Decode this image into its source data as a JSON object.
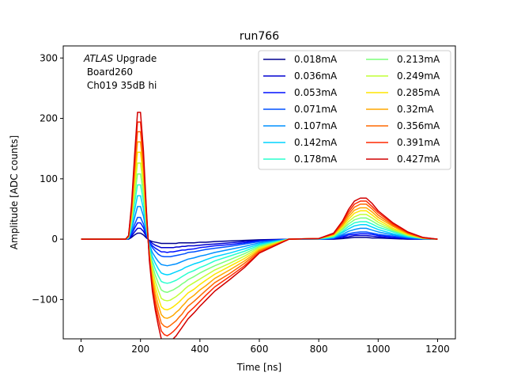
{
  "chart_data": {
    "type": "line",
    "title": "run766",
    "xlabel": "Time [ns]",
    "ylabel": "Amplitude [ADC counts]",
    "xlim": [
      -60,
      1260
    ],
    "ylim": [
      -165,
      320
    ],
    "xticks": [
      0,
      200,
      400,
      600,
      800,
      1000,
      1200
    ],
    "yticks": [
      -100,
      0,
      100,
      200,
      300
    ],
    "ytick_labels": [
      "−100",
      "0",
      "100",
      "200",
      "300"
    ],
    "grid": false,
    "legend_placement": "top-right",
    "legend_columns": 2,
    "annotation": {
      "atlas": "ATLAS",
      "upgrade": " Upgrade",
      "line2": " Board260",
      "line3": " Ch019 35dB hi"
    },
    "x": [
      0,
      100,
      150,
      160,
      170,
      180,
      190,
      200,
      210,
      220,
      230,
      240,
      250,
      260,
      270,
      280,
      290,
      300,
      310,
      320,
      330,
      340,
      350,
      360,
      380,
      400,
      420,
      450,
      500,
      550,
      600,
      700,
      800,
      850,
      880,
      900,
      920,
      940,
      960,
      980,
      1000,
      1050,
      1100,
      1150,
      1200
    ],
    "series": [
      {
        "name": "0.018mA",
        "color": "#00008f",
        "values": [
          0,
          0,
          0,
          0,
          3,
          7,
          10,
          10,
          7,
          2,
          -2,
          -4,
          -5,
          -6,
          -7,
          -7,
          -7,
          -7,
          -7,
          -7,
          -6,
          -6,
          -6,
          -6,
          -6,
          -5,
          -5,
          -4,
          -3,
          -2,
          -1,
          0,
          0,
          0,
          1,
          2,
          3,
          3,
          3,
          2,
          2,
          1,
          0,
          0,
          0
        ]
      },
      {
        "name": "0.036mA",
        "color": "#0000d0",
        "values": [
          0,
          0,
          0,
          1,
          5,
          12,
          18,
          18,
          13,
          4,
          -3,
          -7,
          -10,
          -12,
          -14,
          -14,
          -14,
          -14,
          -14,
          -13,
          -13,
          -12,
          -12,
          -11,
          -11,
          -10,
          -9,
          -8,
          -6,
          -4,
          -2,
          0,
          0,
          1,
          3,
          4,
          6,
          6,
          6,
          5,
          4,
          2,
          1,
          0,
          0
        ]
      },
      {
        "name": "0.053mA",
        "color": "#0010ff",
        "values": [
          0,
          0,
          0,
          1,
          8,
          18,
          27,
          27,
          19,
          6,
          -5,
          -11,
          -15,
          -18,
          -21,
          -21,
          -22,
          -21,
          -21,
          -20,
          -19,
          -18,
          -18,
          -17,
          -16,
          -14,
          -13,
          -11,
          -9,
          -6,
          -3,
          0,
          0,
          1,
          4,
          7,
          8,
          9,
          9,
          8,
          6,
          4,
          1,
          0,
          0
        ]
      },
      {
        "name": "0.071mA",
        "color": "#0050ff",
        "values": [
          0,
          0,
          0,
          1,
          10,
          24,
          36,
          36,
          25,
          8,
          -6,
          -14,
          -20,
          -25,
          -28,
          -29,
          -29,
          -29,
          -28,
          -27,
          -26,
          -25,
          -24,
          -22,
          -21,
          -19,
          -17,
          -15,
          -12,
          -8,
          -4,
          0,
          0,
          2,
          6,
          9,
          11,
          12,
          12,
          10,
          8,
          5,
          2,
          0,
          0
        ]
      },
      {
        "name": "0.107mA",
        "color": "#0090ff",
        "values": [
          0,
          0,
          0,
          2,
          15,
          35,
          54,
          54,
          38,
          12,
          -9,
          -22,
          -30,
          -37,
          -42,
          -43,
          -44,
          -43,
          -42,
          -41,
          -39,
          -37,
          -35,
          -33,
          -31,
          -28,
          -26,
          -22,
          -17,
          -12,
          -6,
          0,
          0,
          2,
          8,
          13,
          16,
          18,
          18,
          15,
          12,
          7,
          3,
          1,
          0
        ]
      },
      {
        "name": "0.142mA",
        "color": "#00d4ff",
        "values": [
          0,
          0,
          0,
          2,
          20,
          47,
          72,
          72,
          50,
          16,
          -12,
          -29,
          -40,
          -49,
          -56,
          -58,
          -59,
          -58,
          -56,
          -54,
          -52,
          -50,
          -47,
          -45,
          -41,
          -38,
          -34,
          -29,
          -23,
          -16,
          -8,
          0,
          0,
          3,
          11,
          17,
          22,
          24,
          24,
          20,
          16,
          9,
          4,
          1,
          0
        ]
      },
      {
        "name": "0.178mA",
        "color": "#29ffce",
        "values": [
          0,
          0,
          0,
          3,
          25,
          59,
          90,
          90,
          63,
          20,
          -15,
          -36,
          -50,
          -61,
          -70,
          -72,
          -73,
          -72,
          -70,
          -68,
          -65,
          -62,
          -59,
          -56,
          -52,
          -47,
          -43,
          -36,
          -28,
          -20,
          -10,
          0,
          1,
          4,
          13,
          21,
          27,
          29,
          29,
          25,
          20,
          12,
          5,
          1,
          0
        ]
      },
      {
        "name": "0.213mA",
        "color": "#7dff7a",
        "values": [
          0,
          0,
          0,
          3,
          30,
          70,
          108,
          108,
          75,
          24,
          -18,
          -43,
          -60,
          -73,
          -84,
          -87,
          -88,
          -86,
          -84,
          -81,
          -78,
          -74,
          -71,
          -67,
          -62,
          -56,
          -51,
          -44,
          -34,
          -24,
          -12,
          0,
          1,
          5,
          16,
          25,
          32,
          35,
          35,
          30,
          24,
          14,
          6,
          1,
          0
        ]
      },
      {
        "name": "0.249mA",
        "color": "#c1ff36",
        "values": [
          0,
          0,
          0,
          4,
          35,
          82,
          126,
          126,
          88,
          28,
          -21,
          -50,
          -70,
          -85,
          -98,
          -101,
          -102,
          -101,
          -98,
          -95,
          -91,
          -87,
          -82,
          -78,
          -72,
          -66,
          -60,
          -51,
          -40,
          -28,
          -14,
          0,
          1,
          6,
          18,
          29,
          37,
          41,
          41,
          35,
          28,
          16,
          7,
          2,
          0
        ]
      },
      {
        "name": "0.285mA",
        "color": "#ffe500",
        "values": [
          0,
          0,
          0,
          4,
          40,
          94,
          144,
          144,
          100,
          32,
          -24,
          -58,
          -80,
          -97,
          -112,
          -116,
          -117,
          -115,
          -112,
          -108,
          -104,
          -99,
          -94,
          -89,
          -83,
          -75,
          -68,
          -58,
          -45,
          -32,
          -16,
          0,
          1,
          7,
          21,
          33,
          43,
          47,
          47,
          40,
          32,
          18,
          8,
          2,
          0
        ]
      },
      {
        "name": "0.32mA",
        "color": "#ffa700",
        "values": [
          0,
          0,
          0,
          5,
          44,
          105,
          161,
          161,
          112,
          36,
          -27,
          -65,
          -90,
          -109,
          -125,
          -130,
          -131,
          -129,
          -126,
          -121,
          -117,
          -111,
          -106,
          -100,
          -93,
          -84,
          -77,
          -65,
          -51,
          -36,
          -18,
          0,
          1,
          8,
          23,
          37,
          48,
          52,
          52,
          45,
          36,
          21,
          9,
          2,
          0
        ]
      },
      {
        "name": "0.356mA",
        "color": "#ff6800",
        "values": [
          0,
          0,
          0,
          5,
          49,
          116,
          178,
          178,
          124,
          40,
          -30,
          -72,
          -100,
          -121,
          -139,
          -144,
          -146,
          -143,
          -139,
          -135,
          -129,
          -124,
          -117,
          -111,
          -103,
          -94,
          -85,
          -72,
          -57,
          -40,
          -20,
          0,
          1,
          8,
          26,
          41,
          53,
          58,
          58,
          50,
          40,
          23,
          10,
          2,
          0
        ]
      },
      {
        "name": "0.391mA",
        "color": "#ff2900",
        "values": [
          0,
          0,
          0,
          6,
          54,
          127,
          194,
          194,
          135,
          44,
          -33,
          -79,
          -109,
          -132,
          -152,
          -158,
          -160,
          -157,
          -153,
          -148,
          -142,
          -135,
          -129,
          -122,
          -113,
          -103,
          -93,
          -79,
          -62,
          -44,
          -22,
          0,
          1,
          9,
          28,
          45,
          58,
          63,
          63,
          54,
          44,
          25,
          11,
          3,
          0
        ]
      },
      {
        "name": "0.427mA",
        "color": "#d20000",
        "values": [
          0,
          0,
          0,
          6,
          58,
          138,
          210,
          210,
          146,
          48,
          -36,
          -86,
          -118,
          -143,
          -165,
          -171,
          -173,
          -170,
          -165,
          -160,
          -153,
          -146,
          -139,
          -132,
          -122,
          -111,
          -101,
          -86,
          -67,
          -47,
          -23,
          0,
          1,
          10,
          30,
          49,
          63,
          68,
          68,
          59,
          47,
          27,
          12,
          3,
          0
        ]
      }
    ]
  }
}
